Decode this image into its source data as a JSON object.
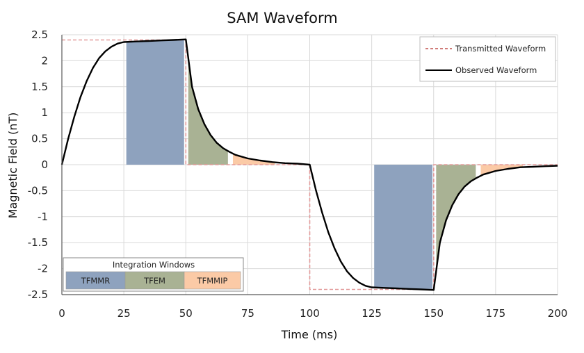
{
  "chart_data": {
    "type": "line",
    "title": "SAM Waveform",
    "xlabel": "Time (ms)",
    "ylabel": "Magnetic Field (nT)",
    "xlim": [
      0,
      200
    ],
    "ylim": [
      -2.5,
      2.5
    ],
    "x_ticks": [
      "0",
      "25",
      "50",
      "75",
      "100",
      "125",
      "150",
      "175",
      "200"
    ],
    "y_ticks": [
      "2.5",
      "2",
      "1.5",
      "1",
      "0.5",
      "0",
      "-0.5",
      "-1",
      "-1.5",
      "-2",
      "-2.5"
    ],
    "grid": true,
    "legend_position": "top-right",
    "series": [
      {
        "name": "Transmitted Waveform",
        "color": "#e8a3a3",
        "style": "dashed",
        "x": [
          0,
          50,
          50,
          100,
          100,
          150,
          150,
          200
        ],
        "y": [
          2.4,
          2.4,
          0,
          0,
          -2.4,
          -2.4,
          0,
          0
        ]
      },
      {
        "name": "Observed Waveform",
        "color": "#000000",
        "style": "solid",
        "x": [
          0,
          2.5,
          5,
          7.5,
          10,
          12.5,
          15,
          17.5,
          20,
          22.5,
          25,
          30,
          35,
          40,
          45,
          50,
          52.5,
          55,
          57.5,
          60,
          62.5,
          65,
          67.5,
          70,
          75,
          80,
          85,
          90,
          95,
          100,
          102.5,
          105,
          107.5,
          110,
          112.5,
          115,
          117.5,
          120,
          122.5,
          125,
          130,
          135,
          140,
          145,
          150,
          152.5,
          155,
          157.5,
          160,
          162.5,
          165,
          167.5,
          170,
          175,
          180,
          185,
          190,
          195,
          200
        ],
        "y": [
          0,
          0.49,
          0.92,
          1.3,
          1.61,
          1.86,
          2.05,
          2.18,
          2.27,
          2.33,
          2.36,
          2.37,
          2.38,
          2.39,
          2.4,
          2.41,
          1.5,
          1.07,
          0.78,
          0.57,
          0.42,
          0.32,
          0.25,
          0.19,
          0.12,
          0.08,
          0.05,
          0.03,
          0.02,
          0,
          -0.49,
          -0.92,
          -1.3,
          -1.61,
          -1.86,
          -2.05,
          -2.18,
          -2.27,
          -2.33,
          -2.36,
          -2.37,
          -2.38,
          -2.39,
          -2.4,
          -2.41,
          -1.5,
          -1.07,
          -0.78,
          -0.57,
          -0.42,
          -0.32,
          -0.25,
          -0.19,
          -0.12,
          -0.08,
          -0.05,
          -0.04,
          -0.03,
          -0.02
        ]
      }
    ],
    "integration_windows": {
      "title": "Integration Windows",
      "items": [
        {
          "name": "TFMMR",
          "color": "#8ea2be",
          "bands": [
            [
              26,
              49.3
            ],
            [
              126,
              149.5
            ]
          ]
        },
        {
          "name": "TFEM",
          "color": "#a9b294",
          "bands": [
            [
              51,
              67
            ],
            [
              151,
              167
            ]
          ]
        },
        {
          "name": "TFMMIP",
          "color": "#fbcaa6",
          "bands": [
            [
              69,
              86
            ],
            [
              169,
              186
            ]
          ]
        }
      ]
    }
  }
}
